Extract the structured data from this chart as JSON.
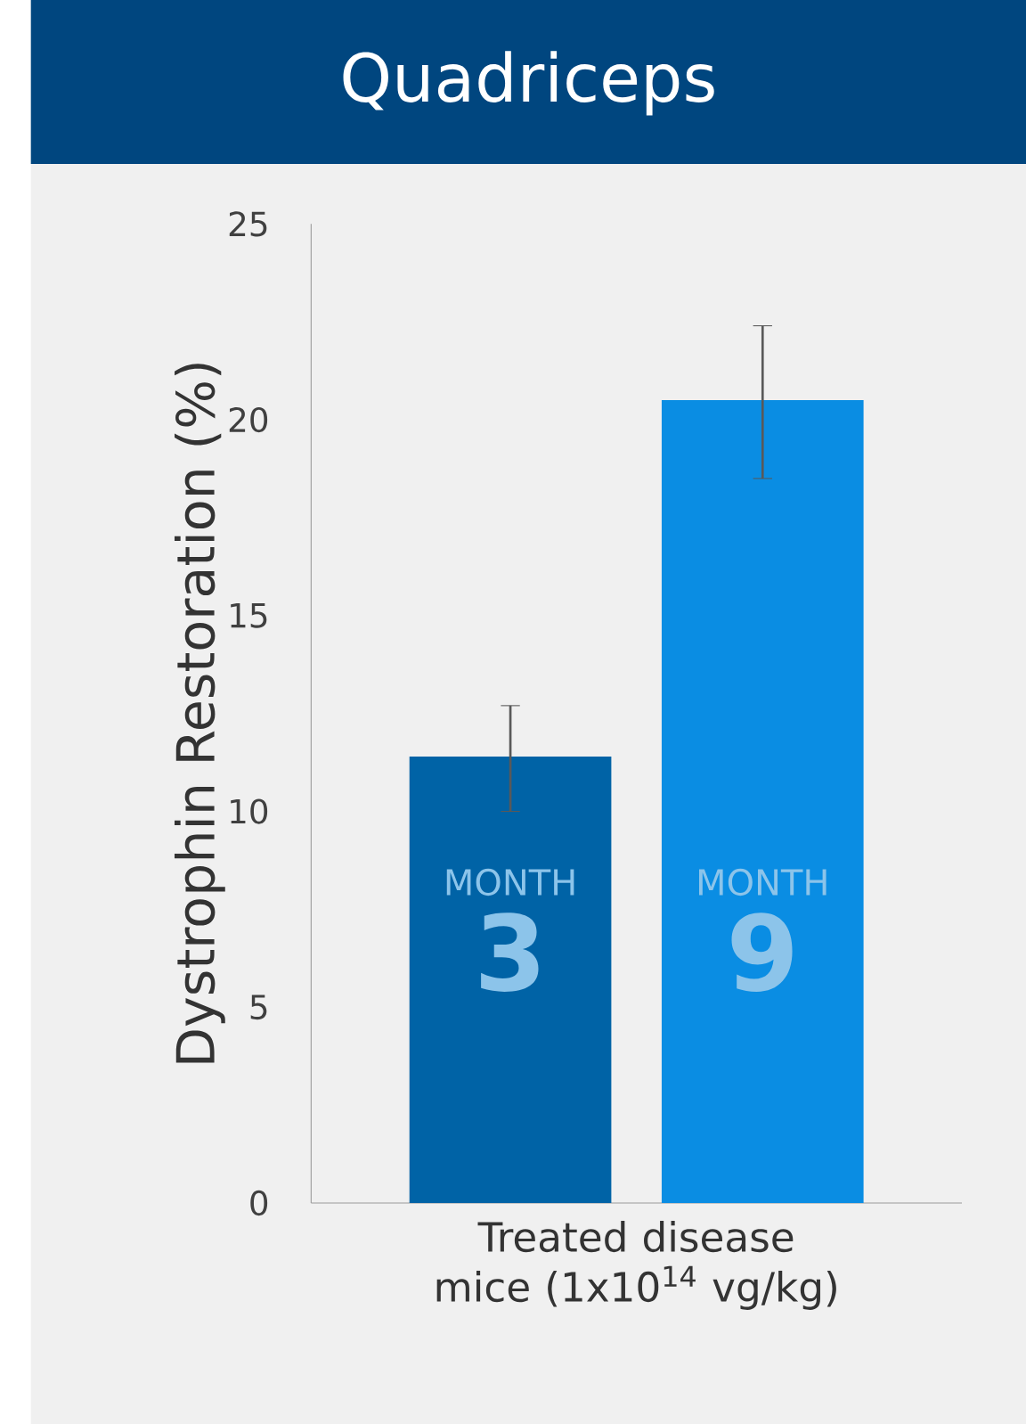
{
  "chart_data": {
    "type": "bar",
    "title": "Quadriceps",
    "xlabel": "Treated disease mice (1x10$^{14}$ vg/kg)",
    "ylabel": "Dystrophin Restoration (%)",
    "categories": [
      "MONTH **3**",
      "MONTH **9**"
    ],
    "values": [
      11.4,
      20.5
    ],
    "errors": [
      [
        10.0,
        12.7
      ],
      [
        18.5,
        22.4
      ]
    ],
    "colors": [
      "#0063a6",
      "#0a8de3"
    ],
    "ylim": [
      0,
      25
    ],
    "yticks": [
      0,
      5,
      10,
      15,
      20,
      25
    ],
    "grid": false
  }
}
